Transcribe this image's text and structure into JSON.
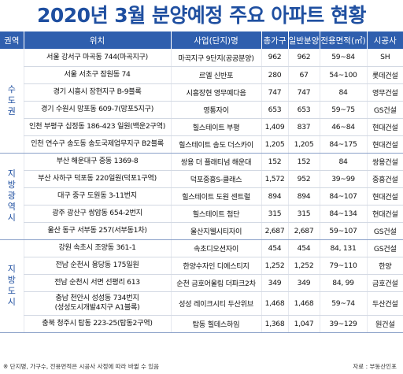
{
  "title": "2020년 3월 분양예정 주요 아파트 현황",
  "headers": [
    "권역",
    "위치",
    "사업(단지)명",
    "총가구",
    "일반분양",
    "전용면적(㎡)",
    "시공사"
  ],
  "groups": [
    {
      "region": "수도권",
      "rows": [
        {
          "location": "서울 강서구 마곡동 744(마곡지구)",
          "name": "마곡지구 9단지(공공분양)",
          "total": "962",
          "general": "962",
          "area": "59~84",
          "builder": "SH"
        },
        {
          "location": "서울 서초구 잠원동 74",
          "name": "르엘 신반포",
          "total": "280",
          "general": "67",
          "area": "54~100",
          "builder": "롯데건설"
        },
        {
          "location": "경기 시흥시 장현지구 B-9블록",
          "name": "시흥장현 영무예다음",
          "total": "747",
          "general": "747",
          "area": "84",
          "builder": "영무건설"
        },
        {
          "location": "경기 수원시 망포동 609-7(망포5지구)",
          "name": "영통자이",
          "total": "653",
          "general": "653",
          "area": "59~75",
          "builder": "GS건설"
        },
        {
          "location": "인천 부평구 십정동 186-423 일원(백운2구역)",
          "name": "힐스테이트 부평",
          "total": "1,409",
          "general": "837",
          "area": "46~84",
          "builder": "현대건설"
        },
        {
          "location": "인천 연수구 송도동 송도국제업무지구 B2블록",
          "name": "힐스테이트 송도 더스카이",
          "total": "1,205",
          "general": "1,205",
          "area": "84~175",
          "builder": "현대건설"
        }
      ]
    },
    {
      "region": "지방광역시",
      "rows": [
        {
          "location": "부산 해운대구 중동 1369-8",
          "name": "쌍용 더 플래티넘 해운대",
          "total": "152",
          "general": "152",
          "area": "84",
          "builder": "쌍용건설"
        },
        {
          "location": "부산 사하구 덕포동 220일원(덕포1구역)",
          "name": "덕포중흥S-클래스",
          "total": "1,572",
          "general": "952",
          "area": "39~99",
          "builder": "중흥건설"
        },
        {
          "location": "대구 중구 도원동 3-11번지",
          "name": "힐스테이트 도원 센트럴",
          "total": "894",
          "general": "894",
          "area": "84~107",
          "builder": "현대건설"
        },
        {
          "location": "광주 광산구 쌍암동 654-2번지",
          "name": "힐스테이트 첨단",
          "total": "315",
          "general": "315",
          "area": "84~134",
          "builder": "현대건설"
        },
        {
          "location": "울산 동구 서부동 257(서부동1차)",
          "name": "울산지웰시티자이",
          "total": "2,687",
          "general": "2,687",
          "area": "59~107",
          "builder": "GS건설"
        }
      ]
    },
    {
      "region": "지방도시",
      "rows": [
        {
          "location": "강원 속초시 조양동 361-1",
          "name": "속초디오션자이",
          "total": "454",
          "general": "454",
          "area": "84, 131",
          "builder": "GS건설"
        },
        {
          "location": "전남 순천시 용당동 175일원",
          "name": "한양수자인 디에스티지",
          "total": "1,252",
          "general": "1,252",
          "area": "79~110",
          "builder": "한양"
        },
        {
          "location": "전남 순천시 서면 선평리 613",
          "name": "순천 금호어울림 더파크2차",
          "total": "349",
          "general": "349",
          "area": "84, 99",
          "builder": "금호건설"
        },
        {
          "location": "충남 천안시 성성동 734번지\n(성성도시개발4지구 A1블록)",
          "name": "성성 레이크시티 두산위브",
          "total": "1,468",
          "general": "1,468",
          "area": "59~74",
          "builder": "두산건설"
        },
        {
          "location": "충북 청주시 탑동 223-25(탑동2구역)",
          "name": "탑동 힐데스하임",
          "total": "1,368",
          "general": "1,047",
          "area": "39~129",
          "builder": "원건설"
        }
      ]
    }
  ],
  "footnote": "※ 단지명, 가구수, 전용면적은 시공사 사정에 따라 바뀔 수 있음",
  "source": "자료 : 부동산인포"
}
